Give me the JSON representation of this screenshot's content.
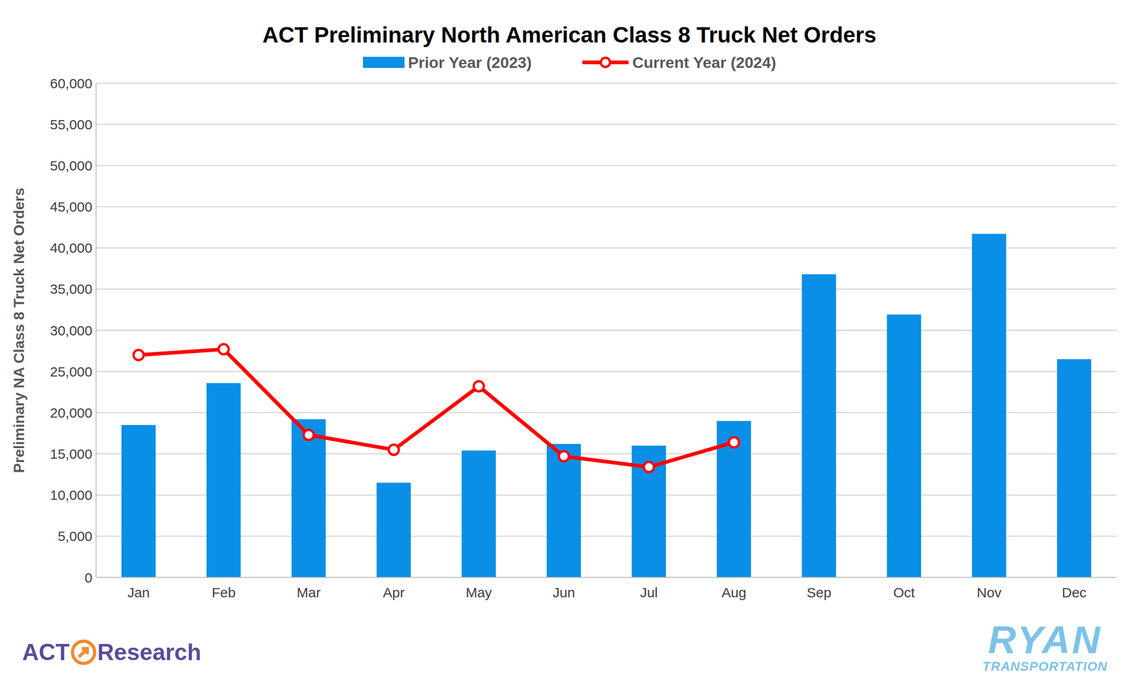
{
  "chart_data": {
    "type": "bar",
    "title": "ACT Preliminary North American Class 8 Truck Net Orders",
    "y_label": "Preliminary NA Class 8 Truck Net Orders",
    "categories": [
      "Jan",
      "Feb",
      "Mar",
      "Apr",
      "May",
      "Jun",
      "Jul",
      "Aug",
      "Sep",
      "Oct",
      "Nov",
      "Dec"
    ],
    "series": [
      {
        "name": "Prior Year (2023)",
        "type": "bar",
        "color": "#0A8FE6",
        "values": [
          18500,
          23600,
          19200,
          11500,
          15400,
          16200,
          16000,
          19000,
          36800,
          31900,
          41700,
          26500
        ]
      },
      {
        "name": "Current Year (2024)",
        "type": "line",
        "color": "#FF0000",
        "marker": "circle",
        "values": [
          27000,
          27700,
          17300,
          15500,
          23200,
          14700,
          13400,
          16400,
          null,
          null,
          null,
          null
        ]
      }
    ],
    "ylim": [
      0,
      60000
    ],
    "yticks": [
      0,
      {
        "value": 5000,
        "label": "5,000"
      },
      {
        "value": 10000,
        "label": "10,000"
      },
      {
        "value": 15000,
        "label": "15,000"
      },
      {
        "value": 20000,
        "label": "20,000"
      },
      {
        "value": 25000,
        "label": "25,000"
      },
      {
        "value": 30000,
        "label": "30,000"
      },
      {
        "value": 35000,
        "label": "35,000"
      },
      {
        "value": 40000,
        "label": "40,000"
      },
      {
        "value": 45000,
        "label": "45,000"
      },
      {
        "value": 50000,
        "label": "50,000"
      },
      {
        "value": 55000,
        "label": "55,000"
      },
      {
        "value": 60000,
        "label": "60,000"
      }
    ],
    "grid": true,
    "legend": "top",
    "annotations": [
      "ACT",
      "Research",
      "RYAN",
      "TRANSPORTATION"
    ]
  }
}
